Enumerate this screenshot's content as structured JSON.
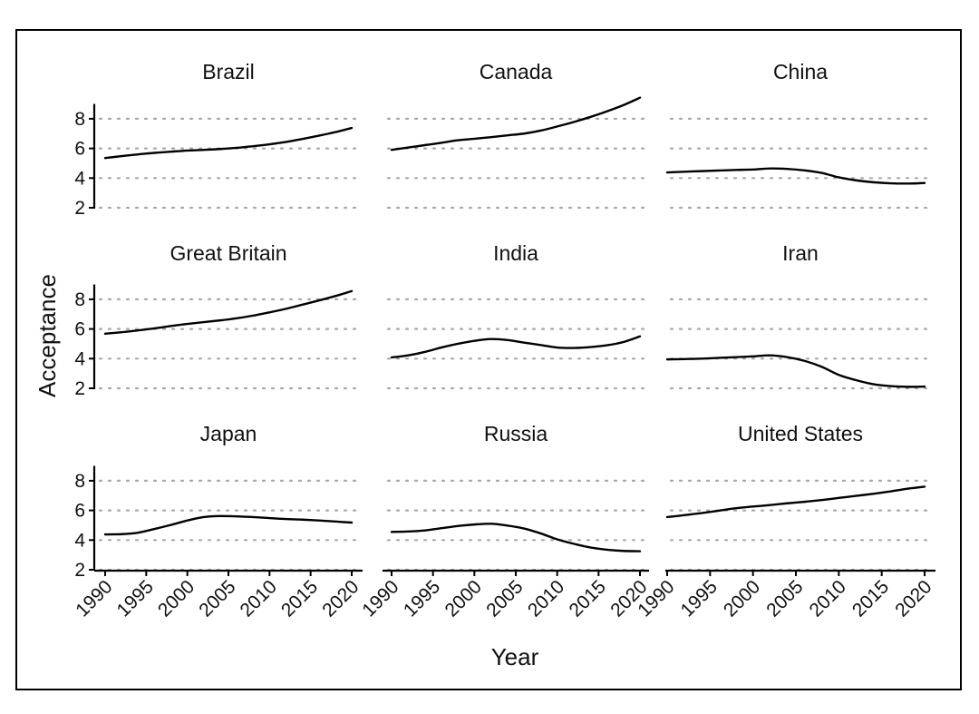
{
  "chart_data": {
    "type": "line",
    "layout": "facet-grid-3x3",
    "xlabel": "Year",
    "ylabel": "Acceptance",
    "xlim": [
      1990,
      2020
    ],
    "ylim": [
      2,
      9
    ],
    "x_ticks": [
      1990,
      1995,
      2000,
      2005,
      2010,
      2015,
      2020
    ],
    "y_ticks": [
      2,
      4,
      6,
      8
    ],
    "grid": "horizontal-dotted",
    "line_color": "#000000",
    "grid_color": "#a8a8a8",
    "x": [
      1990,
      1992,
      1994,
      1996,
      1998,
      2000,
      2002,
      2004,
      2006,
      2008,
      2010,
      2012,
      2014,
      2016,
      2018,
      2020
    ],
    "panels": [
      {
        "title": "Brazil",
        "values": [
          5.35,
          5.48,
          5.6,
          5.7,
          5.78,
          5.86,
          5.9,
          5.96,
          6.04,
          6.15,
          6.28,
          6.44,
          6.64,
          6.86,
          7.1,
          7.38
        ]
      },
      {
        "title": "Canada",
        "values": [
          5.9,
          6.06,
          6.22,
          6.38,
          6.55,
          6.65,
          6.76,
          6.88,
          7.0,
          7.2,
          7.48,
          7.78,
          8.12,
          8.5,
          8.92,
          9.42
        ]
      },
      {
        "title": "China",
        "values": [
          4.38,
          4.43,
          4.47,
          4.51,
          4.55,
          4.58,
          4.65,
          4.62,
          4.52,
          4.35,
          4.05,
          3.85,
          3.72,
          3.65,
          3.63,
          3.67
        ]
      },
      {
        "title": "Great Britain",
        "values": [
          5.68,
          5.78,
          5.9,
          6.04,
          6.2,
          6.34,
          6.46,
          6.58,
          6.72,
          6.9,
          7.12,
          7.36,
          7.64,
          7.92,
          8.22,
          8.55
        ]
      },
      {
        "title": "India",
        "values": [
          4.08,
          4.22,
          4.45,
          4.75,
          5.0,
          5.2,
          5.32,
          5.25,
          5.08,
          4.92,
          4.75,
          4.72,
          4.78,
          4.9,
          5.12,
          5.5
        ]
      },
      {
        "title": "Iran",
        "values": [
          3.95,
          3.97,
          4.0,
          4.05,
          4.1,
          4.15,
          4.22,
          4.1,
          3.85,
          3.45,
          2.9,
          2.55,
          2.28,
          2.15,
          2.1,
          2.12
        ]
      },
      {
        "title": "Japan",
        "values": [
          4.38,
          4.4,
          4.5,
          4.75,
          5.02,
          5.32,
          5.55,
          5.62,
          5.6,
          5.55,
          5.48,
          5.42,
          5.38,
          5.32,
          5.25,
          5.18
        ]
      },
      {
        "title": "Russia",
        "values": [
          4.55,
          4.58,
          4.65,
          4.8,
          4.95,
          5.05,
          5.1,
          4.98,
          4.78,
          4.45,
          4.05,
          3.75,
          3.5,
          3.35,
          3.27,
          3.25
        ]
      },
      {
        "title": "United States",
        "values": [
          5.55,
          5.68,
          5.82,
          5.98,
          6.15,
          6.26,
          6.36,
          6.48,
          6.58,
          6.7,
          6.84,
          6.98,
          7.12,
          7.28,
          7.46,
          7.6
        ]
      }
    ]
  }
}
